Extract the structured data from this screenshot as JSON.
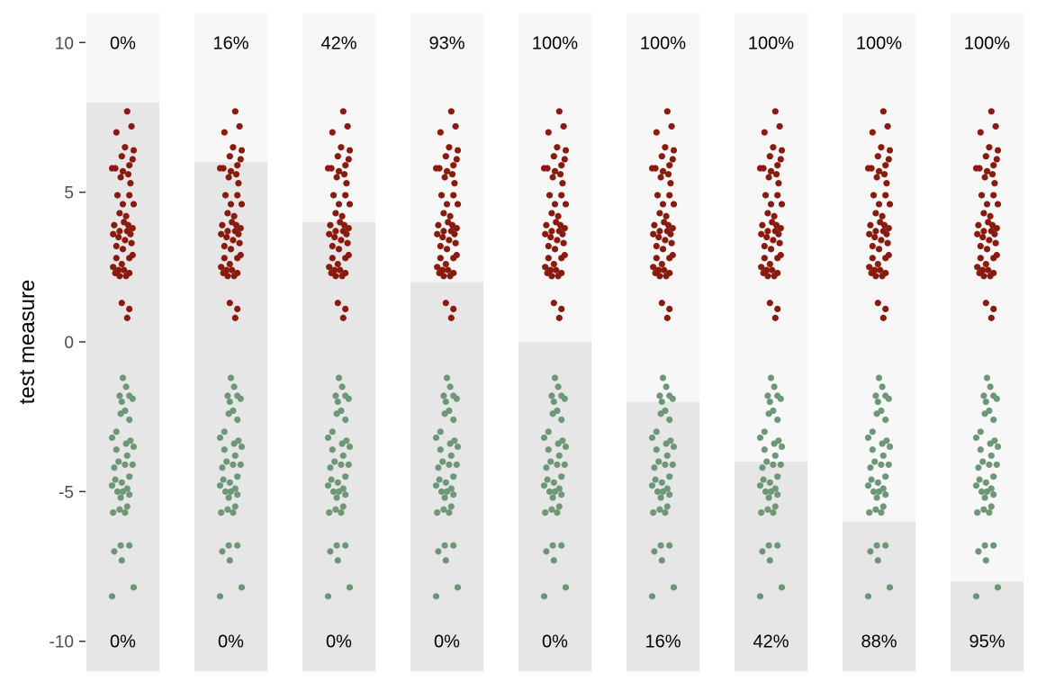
{
  "chart_data": {
    "type": "scatter",
    "title": "",
    "xlabel": "",
    "ylabel": "test measure",
    "ylim": [
      -11,
      11
    ],
    "yticks": [
      10,
      5,
      0,
      -5,
      -10
    ],
    "ytick_labels": [
      "10",
      "5",
      "0",
      "-5",
      "-10"
    ],
    "grid": false,
    "legend": "none",
    "panels": [
      {
        "threshold": 8,
        "top_label": "0%",
        "bottom_label": "0%"
      },
      {
        "threshold": 6,
        "top_label": "16%",
        "bottom_label": "0%"
      },
      {
        "threshold": 4,
        "top_label": "42%",
        "bottom_label": "0%"
      },
      {
        "threshold": 2,
        "top_label": "93%",
        "bottom_label": "0%"
      },
      {
        "threshold": 0,
        "top_label": "100%",
        "bottom_label": "0%"
      },
      {
        "threshold": -2,
        "top_label": "100%",
        "bottom_label": "16%"
      },
      {
        "threshold": -4,
        "top_label": "100%",
        "bottom_label": "42%"
      },
      {
        "threshold": -6,
        "top_label": "100%",
        "bottom_label": "88%"
      },
      {
        "threshold": -8,
        "top_label": "100%",
        "bottom_label": "95%"
      }
    ],
    "series": [
      {
        "name": "",
        "color": "#8B1A0E",
        "values": [
          7.7,
          7.2,
          7.0,
          6.5,
          6.4,
          6.2,
          6.1,
          5.9,
          5.8,
          5.8,
          5.7,
          5.6,
          5.5,
          5.3,
          4.9,
          4.9,
          4.6,
          4.6,
          4.3,
          4.2,
          4.0,
          3.9,
          3.9,
          3.8,
          3.7,
          3.7,
          3.6,
          3.6,
          3.5,
          3.4,
          3.3,
          3.2,
          3.1,
          2.9,
          2.8,
          2.8,
          2.6,
          2.5,
          2.4,
          2.4,
          2.3,
          2.3,
          2.2,
          2.2,
          1.3,
          1.1,
          0.8
        ],
        "jitter": [
          0.4,
          0.8,
          -0.6,
          0.2,
          1.0,
          -0.1,
          0.9,
          0.6,
          -0.7,
          -1.0,
          0.0,
          0.5,
          -0.2,
          0.7,
          -0.5,
          0.6,
          0.0,
          1.0,
          -0.3,
          0.3,
          0.1,
          -0.8,
          0.5,
          0.9,
          -0.3,
          0.4,
          -0.9,
          0.7,
          -0.4,
          0.2,
          0.8,
          -0.6,
          0.0,
          0.9,
          -0.6,
          0.6,
          -0.1,
          -0.9,
          -0.4,
          0.1,
          0.6,
          -0.7,
          -0.3,
          0.3,
          -0.1,
          0.6,
          0.4
        ]
      },
      {
        "name": "",
        "color": "#6E9778",
        "values": [
          -1.2,
          -1.5,
          -1.8,
          -1.8,
          -1.9,
          -2.0,
          -2.3,
          -2.4,
          -2.6,
          -3.0,
          -3.2,
          -3.3,
          -3.4,
          -3.5,
          -3.6,
          -3.8,
          -4.0,
          -4.1,
          -4.1,
          -4.2,
          -4.5,
          -4.6,
          -4.7,
          -4.8,
          -4.9,
          -5.0,
          -5.0,
          -5.1,
          -5.2,
          -5.5,
          -5.6,
          -5.7,
          -5.7,
          -6.8,
          -6.8,
          -7.0,
          -7.3,
          -8.2,
          -8.5
        ],
        "jitter": [
          0.0,
          0.3,
          -0.3,
          0.6,
          0.9,
          -0.1,
          0.2,
          -0.2,
          0.6,
          -0.6,
          -1.0,
          0.7,
          0.3,
          1.0,
          -0.6,
          0.4,
          -0.4,
          0.2,
          0.9,
          -0.8,
          0.6,
          -0.7,
          -0.1,
          -1.0,
          0.4,
          0.0,
          -0.5,
          0.6,
          -0.2,
          0.4,
          -0.3,
          -0.9,
          0.2,
          0.6,
          -0.2,
          -0.8,
          -0.1,
          1.0,
          -1.0
        ]
      }
    ]
  }
}
